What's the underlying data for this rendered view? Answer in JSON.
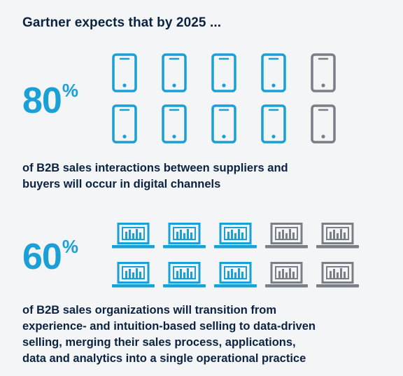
{
  "title": "Gartner expects that by 2025 ...",
  "colors": {
    "accent": "#1a9fd6",
    "muted": "#7a7f86",
    "text": "#0b2341"
  },
  "stat1": {
    "value": "80",
    "unit": "%",
    "icon": "smartphone-icon",
    "icons_total": 10,
    "icons_highlighted": 8,
    "description_lines": [
      "of B2B sales interactions between suppliers and",
      "buyers will occur in digital channels"
    ]
  },
  "stat2": {
    "value": "60",
    "unit": "%",
    "icon": "laptop-chart-icon",
    "icons_total": 10,
    "icons_highlighted": 6,
    "description_lines": [
      "of B2B sales organizations will transition from",
      "experience- and intuition-based selling to data-driven",
      "selling, merging their sales process, applications,",
      "data and analytics into a single operational practice"
    ]
  }
}
